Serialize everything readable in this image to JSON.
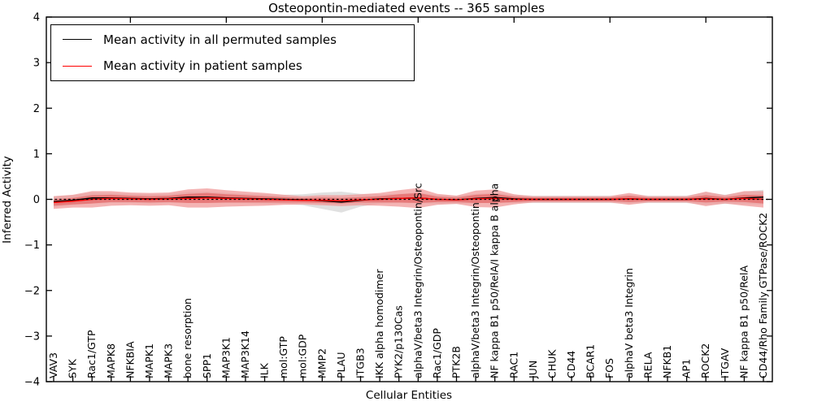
{
  "chart_data": {
    "type": "line",
    "title": "Osteopontin-mediated events -- 365 samples",
    "xlabel": "Cellular Entities",
    "ylabel": "Inferred Activity",
    "ylim": [
      -4,
      4
    ],
    "yticks": [
      4,
      3,
      2,
      1,
      0,
      -1,
      -2,
      -3,
      -4
    ],
    "ytick_labels": [
      "4",
      "3",
      "2",
      "1",
      "0",
      "−1",
      "−2",
      "−3",
      "−4"
    ],
    "grid": false,
    "legend_position": "upper-left-inside",
    "legend": [
      {
        "label": "Mean activity in all permuted samples",
        "color": "#000000"
      },
      {
        "label": "Mean activity in patient samples",
        "color": "#ff0000"
      }
    ],
    "categories": [
      "VAV3",
      "SYK",
      "Rac1/GTP",
      "MAPK8",
      "NFKBIA",
      "MAPK1",
      "MAPK3",
      "bone resorption",
      "SPP1",
      "MAP3K1",
      "MAP3K14",
      "ILK",
      "mol:GTP",
      "mol:GDP",
      "MMP2",
      "PLAU",
      "ITGB3",
      "IKK alpha homodimer",
      "PYK2/p130Cas",
      "alphaV/beta3 Integrin/Osteopontin/Src",
      "Rac1/GDP",
      "PTK2B",
      "alphaV/beta3 Integrin/Osteopontin",
      "NF kappa B1 p50/RelA/I kappa B alpha",
      "RAC1",
      "JUN",
      "CHUK",
      "CD44",
      "BCAR1",
      "FOS",
      "alphaV beta3 Integrin",
      "RELA",
      "NFKB1",
      "AP1",
      "ROCK2",
      "ITGAV",
      "NF kappa B1 p50/RelA",
      "CD44/Rho Family GTPase/ROCK2"
    ],
    "series": [
      {
        "name": "Mean activity in all permuted samples",
        "color": "#000000",
        "values": [
          -0.05,
          -0.02,
          0.03,
          0.03,
          0.02,
          0.01,
          0.02,
          0.05,
          0.05,
          0.03,
          0.02,
          0.01,
          0.0,
          -0.01,
          -0.03,
          -0.06,
          -0.02,
          0.01,
          0.02,
          0.03,
          0.0,
          -0.01,
          0.02,
          0.04,
          0.01,
          0.0,
          0.0,
          0.0,
          0.0,
          0.0,
          0.01,
          0.0,
          0.0,
          0.0,
          0.02,
          0.0,
          0.03,
          0.05
        ]
      },
      {
        "name": "Mean activity in patient samples",
        "color": "#ff0000",
        "values": [
          -0.07,
          -0.04,
          0.0,
          0.02,
          0.01,
          0.0,
          0.01,
          0.02,
          0.03,
          0.02,
          0.01,
          0.0,
          -0.01,
          -0.02,
          -0.02,
          -0.03,
          -0.01,
          0.0,
          0.02,
          0.03,
          0.0,
          -0.01,
          0.01,
          0.02,
          0.0,
          0.0,
          0.0,
          0.0,
          0.0,
          0.0,
          0.01,
          0.0,
          0.0,
          0.0,
          0.01,
          0.0,
          0.02,
          0.0
        ]
      }
    ],
    "bands": [
      {
        "name": "permuted-std-band",
        "color": "#cfcfcf",
        "opacity": 0.65,
        "center_series": 0,
        "half_widths": [
          0.12,
          0.11,
          0.12,
          0.11,
          0.1,
          0.1,
          0.1,
          0.12,
          0.12,
          0.11,
          0.1,
          0.1,
          0.1,
          0.12,
          0.18,
          0.23,
          0.14,
          0.1,
          0.1,
          0.11,
          0.1,
          0.09,
          0.1,
          0.11,
          0.09,
          0.08,
          0.08,
          0.08,
          0.08,
          0.08,
          0.1,
          0.08,
          0.08,
          0.08,
          0.14,
          0.1,
          0.14,
          0.16
        ]
      },
      {
        "name": "patient-std-band-outer",
        "color": "#f09a9a",
        "opacity": 0.75,
        "center_series": 1,
        "half_widths": [
          0.14,
          0.14,
          0.18,
          0.16,
          0.14,
          0.14,
          0.14,
          0.2,
          0.21,
          0.18,
          0.16,
          0.14,
          0.11,
          0.09,
          0.11,
          0.12,
          0.12,
          0.14,
          0.18,
          0.22,
          0.12,
          0.09,
          0.18,
          0.2,
          0.11,
          0.07,
          0.07,
          0.07,
          0.07,
          0.07,
          0.13,
          0.07,
          0.07,
          0.07,
          0.16,
          0.09,
          0.16,
          0.18
        ]
      },
      {
        "name": "patient-std-band-inner",
        "color": "#e56a6a",
        "opacity": 0.75,
        "center_series": 1,
        "half_widths": [
          0.07,
          0.07,
          0.09,
          0.08,
          0.07,
          0.07,
          0.07,
          0.1,
          0.11,
          0.09,
          0.08,
          0.07,
          0.06,
          0.05,
          0.06,
          0.06,
          0.06,
          0.07,
          0.09,
          0.11,
          0.06,
          0.05,
          0.09,
          0.1,
          0.06,
          0.04,
          0.04,
          0.04,
          0.04,
          0.04,
          0.07,
          0.04,
          0.04,
          0.04,
          0.08,
          0.05,
          0.08,
          0.09
        ]
      }
    ],
    "zero_line": {
      "style": "dotted",
      "color": "#000000",
      "y": 0
    },
    "top_tick_indices": [
      4,
      9,
      14,
      19,
      24,
      29,
      34
    ]
  }
}
